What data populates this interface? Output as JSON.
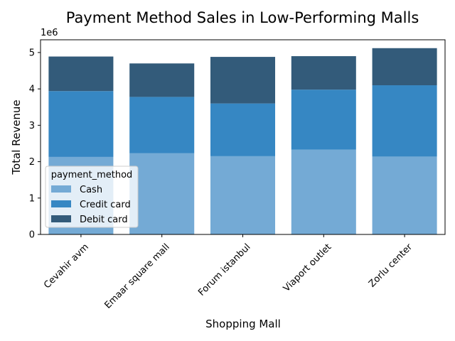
{
  "chart_data": {
    "type": "bar",
    "stacked": true,
    "title": "Payment Method Sales in Low-Performing Malls",
    "xlabel": "Shopping Mall",
    "ylabel": "Total Revenue",
    "y_offset_label": "1e6",
    "ylim": [
      0,
      5.35
    ],
    "y_ticks": [
      0,
      1,
      2,
      3,
      4,
      5
    ],
    "y_tick_labels": [
      "0",
      "1",
      "2",
      "3",
      "4",
      "5"
    ],
    "y_scale_factor": 1000000,
    "grid": false,
    "categories": [
      "Cevahir avm",
      "Emaar square mall",
      "Forum istanbul",
      "Viaport outlet",
      "Zorlu center"
    ],
    "legend": {
      "title": "payment_method",
      "placement": "center-left"
    },
    "series": [
      {
        "name": "Cash",
        "color": "#74aad5",
        "values": [
          2.13,
          2.23,
          2.15,
          2.33,
          2.14
        ]
      },
      {
        "name": "Credit card",
        "color": "#3687c3",
        "values": [
          1.81,
          1.55,
          1.45,
          1.65,
          1.96
        ]
      },
      {
        "name": "Debit card",
        "color": "#335b7a",
        "values": [
          0.95,
          0.92,
          1.28,
          0.92,
          1.02
        ]
      }
    ]
  }
}
